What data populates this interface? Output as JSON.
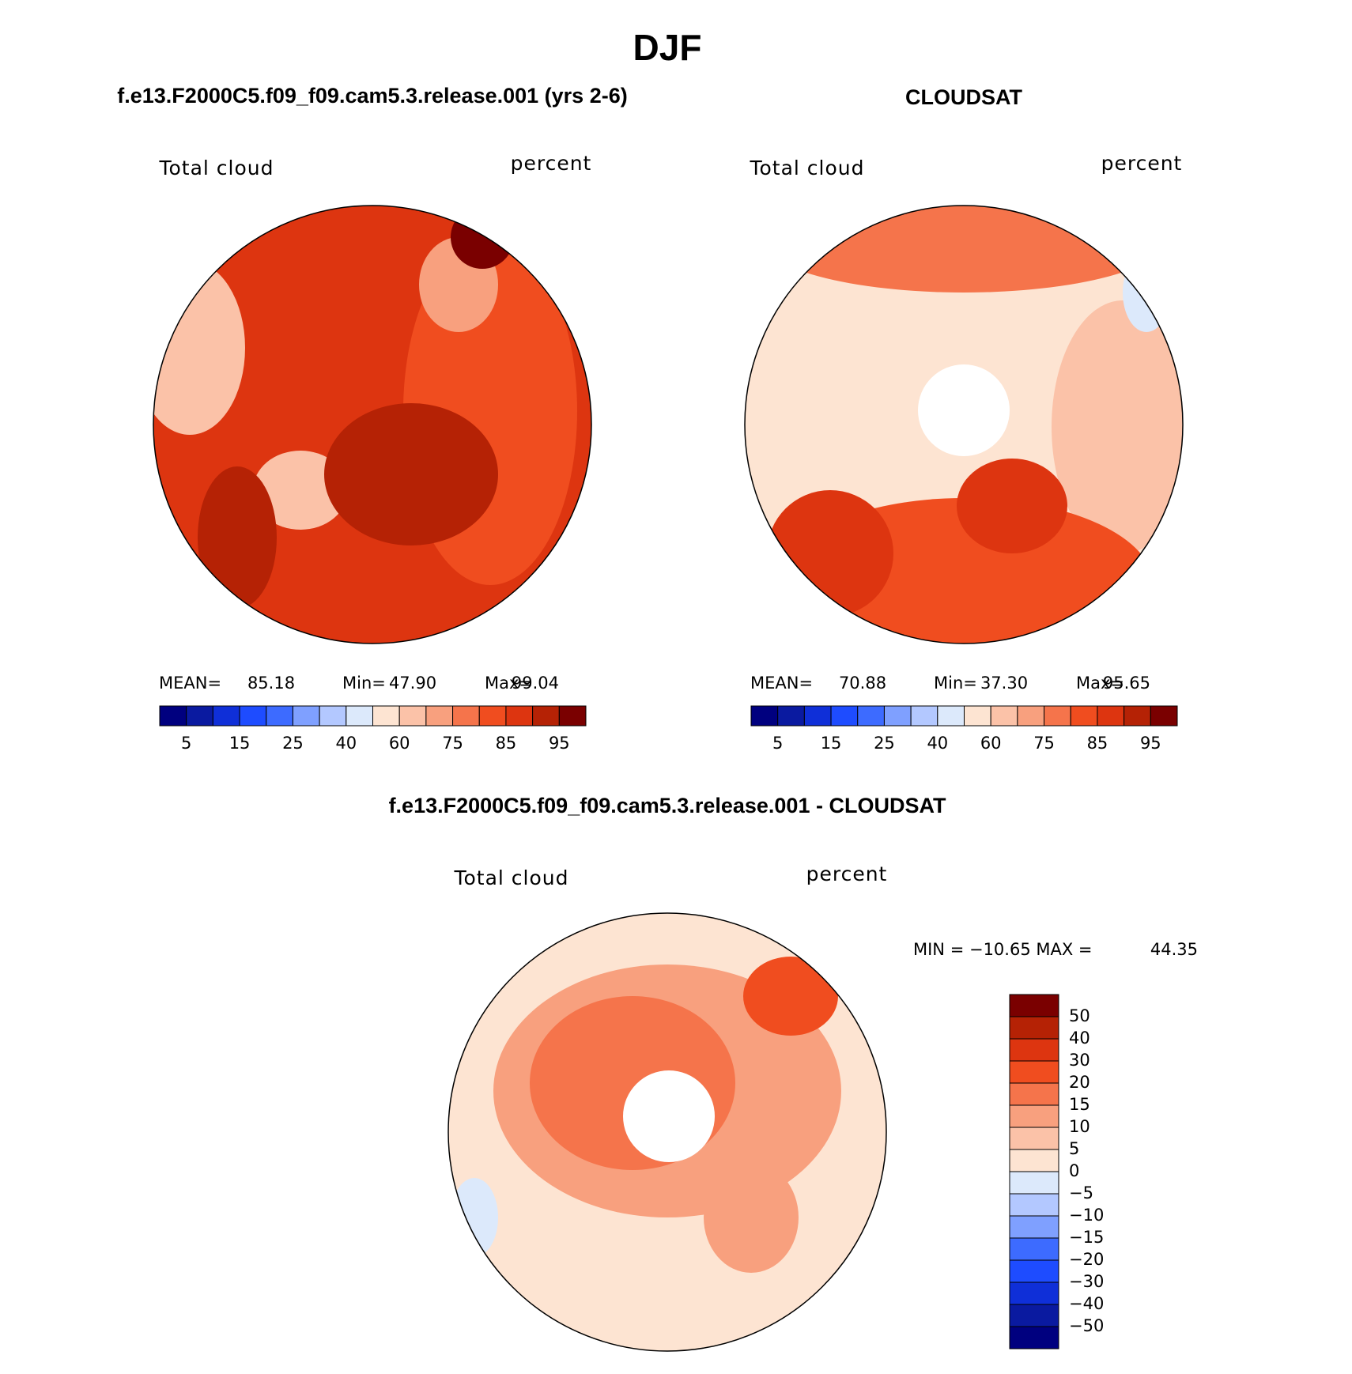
{
  "title": "DJF",
  "panels": [
    {
      "title": "f.e13.F2000C5.f09_f09.cam5.3.release.001 (yrs 2-6)",
      "left_label": "Total cloud",
      "right_label": "percent",
      "stats": [
        "MEAN=",
        "85.18",
        "Min=",
        "47.90",
        "Max=",
        "99.04"
      ],
      "colorbar": {
        "colors": [
          "#00007f",
          "#0a1aa0",
          "#0f2fd8",
          "#1e4cff",
          "#3d6bff",
          "#7fa0ff",
          "#b3c8ff",
          "#dce9fb",
          "#fde4d2",
          "#fbc2a8",
          "#f8a07e",
          "#f5744b",
          "#f04d1f",
          "#dd3510",
          "#b52205",
          "#7a0000"
        ],
        "labels": [
          "5",
          "15",
          "25",
          "40",
          "60",
          "75",
          "85",
          "95"
        ]
      }
    },
    {
      "title": "CLOUDSAT",
      "left_label": "Total cloud",
      "right_label": "percent",
      "stats": [
        "MEAN=",
        "70.88",
        "Min=",
        "37.30",
        "Max=",
        "95.65"
      ],
      "colorbar": {
        "colors": [
          "#00007f",
          "#0a1aa0",
          "#0f2fd8",
          "#1e4cff",
          "#3d6bff",
          "#7fa0ff",
          "#b3c8ff",
          "#dce9fb",
          "#fde4d2",
          "#fbc2a8",
          "#f8a07e",
          "#f5744b",
          "#f04d1f",
          "#dd3510",
          "#b52205",
          "#7a0000"
        ],
        "labels": [
          "5",
          "15",
          "25",
          "40",
          "60",
          "75",
          "85",
          "95"
        ]
      }
    },
    {
      "title": "f.e13.F2000C5.f09_f09.cam5.3.release.001 - CLOUDSAT",
      "left_label": "Total cloud",
      "right_label": "percent",
      "stats": [
        "MIN = −10.65 MAX =",
        "44.35"
      ],
      "colorbar": {
        "colors": [
          "#7a0000",
          "#b52205",
          "#dd3510",
          "#f04d1f",
          "#f5744b",
          "#f8a07e",
          "#fbc2a8",
          "#fde4d2",
          "#dce9fb",
          "#b3c8ff",
          "#7fa0ff",
          "#3d6bff",
          "#1e4cff",
          "#0f2fd8",
          "#0a1aa0",
          "#00007f"
        ],
        "labels": [
          "50",
          "40",
          "30",
          "20",
          "15",
          "10",
          "5",
          "0",
          "−5",
          "−10",
          "−15",
          "−20",
          "−30",
          "−40",
          "−50"
        ]
      }
    }
  ]
}
